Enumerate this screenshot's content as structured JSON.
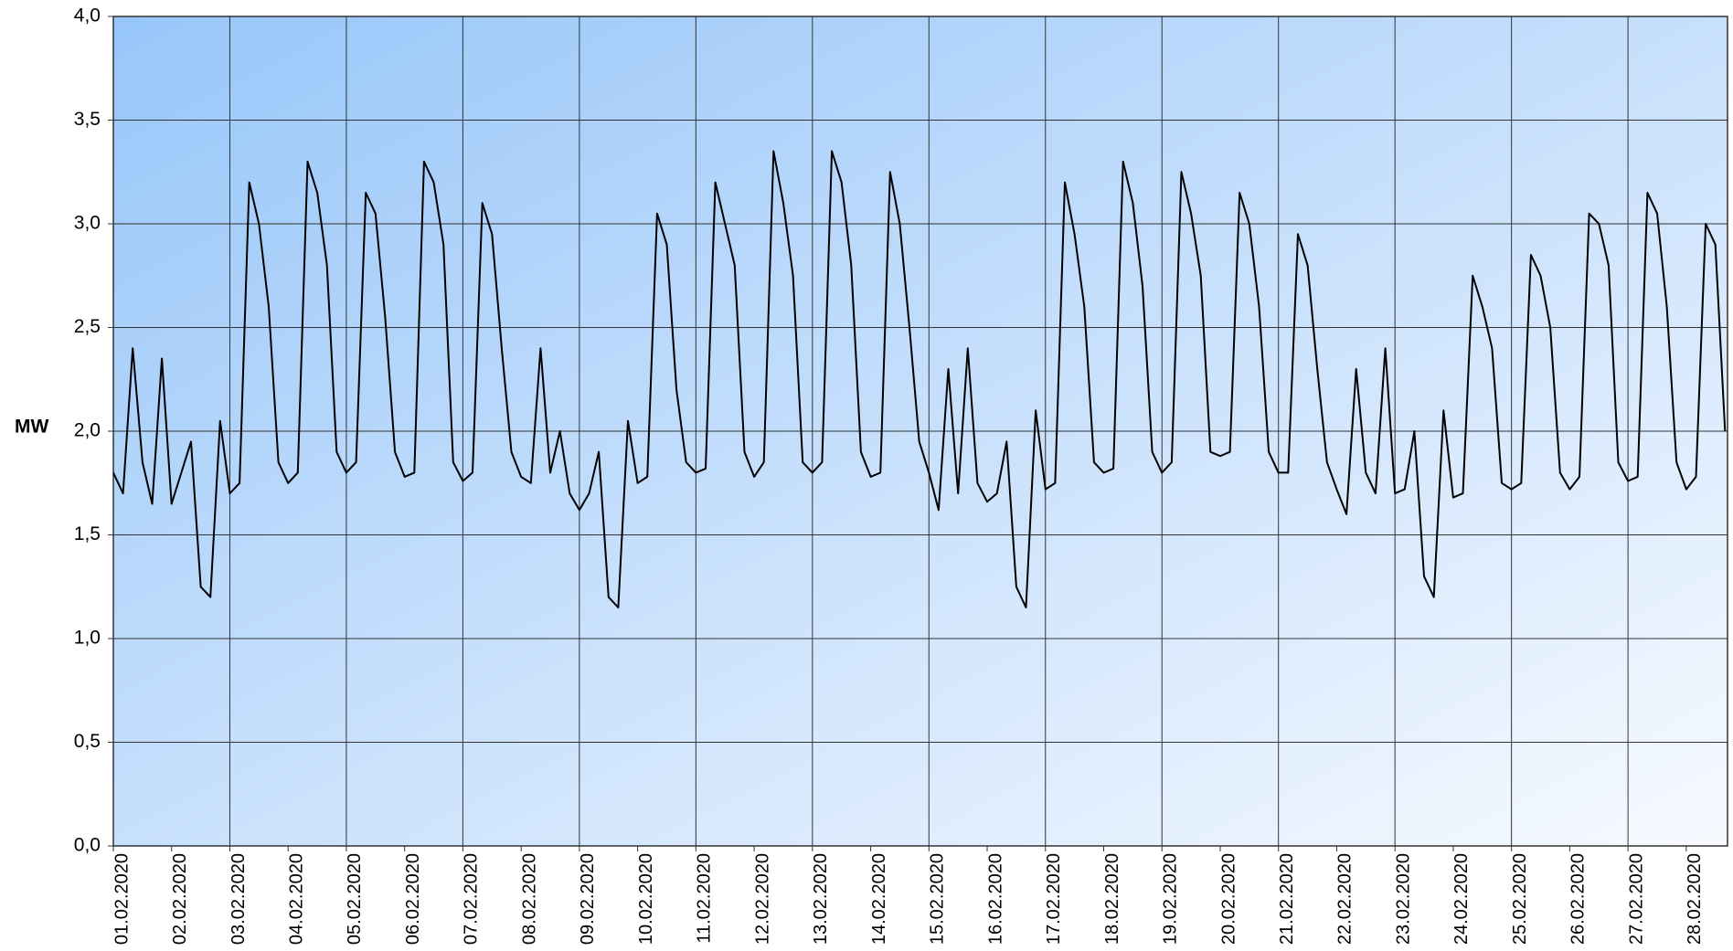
{
  "chart_data": {
    "type": "line",
    "ylabel": "MW",
    "x": [
      0,
      4,
      8,
      12,
      16,
      20,
      24,
      28,
      32,
      36,
      40,
      44,
      48,
      52,
      56,
      60,
      64,
      68,
      72,
      76,
      80,
      84,
      88,
      92,
      96,
      100,
      104,
      108,
      112,
      116,
      120,
      124,
      128,
      132,
      136,
      140,
      144,
      148,
      152,
      156,
      160,
      164,
      168,
      172,
      176,
      180,
      184,
      188,
      192,
      196,
      200,
      204,
      208,
      212,
      216,
      220,
      224,
      228,
      232,
      236,
      240,
      244,
      248,
      252,
      256,
      260,
      264,
      268,
      272,
      276,
      280,
      284,
      288,
      292,
      296,
      300,
      304,
      308,
      312,
      316,
      320,
      324,
      328,
      332,
      336,
      340,
      344,
      348,
      352,
      356,
      360,
      364,
      368,
      372,
      376,
      380,
      384,
      388,
      392,
      396,
      400,
      404,
      408,
      412,
      416,
      420,
      424,
      428,
      432,
      436,
      440,
      444,
      448,
      452,
      456,
      460,
      464,
      468,
      472,
      476,
      480,
      484,
      488,
      492,
      496,
      500,
      504,
      508,
      512,
      516,
      520,
      524,
      528,
      532,
      536,
      540,
      544,
      548,
      552,
      556,
      560,
      564,
      568,
      572,
      576,
      580,
      584,
      588,
      592,
      596,
      600,
      604,
      608,
      612,
      616,
      620,
      624,
      628,
      632,
      636,
      640,
      644,
      648,
      652,
      656,
      660,
      664
    ],
    "series": [
      {
        "name": "MW",
        "color": "#000000",
        "values": [
          1.8,
          1.7,
          2.4,
          1.85,
          1.65,
          2.35,
          1.65,
          1.8,
          1.95,
          1.25,
          1.2,
          2.05,
          1.7,
          1.75,
          3.2,
          3.0,
          2.6,
          1.85,
          1.75,
          1.8,
          3.3,
          3.15,
          2.8,
          1.9,
          1.8,
          1.85,
          3.15,
          3.05,
          2.55,
          1.9,
          1.78,
          1.8,
          3.3,
          3.2,
          2.9,
          1.85,
          1.76,
          1.8,
          3.1,
          2.95,
          2.4,
          1.9,
          1.78,
          1.75,
          2.4,
          1.8,
          2.0,
          1.7,
          1.62,
          1.7,
          1.9,
          1.2,
          1.15,
          2.05,
          1.75,
          1.78,
          3.05,
          2.9,
          2.2,
          1.85,
          1.8,
          1.82,
          3.2,
          3.0,
          2.8,
          1.9,
          1.78,
          1.85,
          3.35,
          3.1,
          2.75,
          1.85,
          1.8,
          1.85,
          3.35,
          3.2,
          2.8,
          1.9,
          1.78,
          1.8,
          3.25,
          3.0,
          2.5,
          1.95,
          1.8,
          1.62,
          2.3,
          1.7,
          2.4,
          1.75,
          1.66,
          1.7,
          1.95,
          1.25,
          1.15,
          2.1,
          1.72,
          1.75,
          3.2,
          2.95,
          2.6,
          1.85,
          1.8,
          1.82,
          3.3,
          3.1,
          2.7,
          1.9,
          1.8,
          1.85,
          3.25,
          3.05,
          2.75,
          1.9,
          1.88,
          1.9,
          3.15,
          3.0,
          2.6,
          1.9,
          1.8,
          1.8,
          2.95,
          2.8,
          2.3,
          1.85,
          1.72,
          1.6,
          2.3,
          1.8,
          1.7,
          2.4,
          1.7,
          1.72,
          2.0,
          1.3,
          1.2,
          2.1,
          1.68,
          1.7,
          2.75,
          2.6,
          2.4,
          1.75,
          1.72,
          1.75,
          2.85,
          2.75,
          2.5,
          1.8,
          1.72,
          1.78,
          3.05,
          3.0,
          2.8,
          1.85,
          1.76,
          1.78,
          3.15,
          3.05,
          2.6,
          1.85,
          1.72,
          1.78,
          3.0,
          2.9,
          2.0
        ]
      }
    ],
    "xlim": [
      0,
      665
    ],
    "xticks": [
      {
        "value": 0,
        "label": "01.02.2020"
      },
      {
        "value": 24,
        "label": "02.02.2020"
      },
      {
        "value": 48,
        "label": "03.02.2020"
      },
      {
        "value": 72,
        "label": "04.02.2020"
      },
      {
        "value": 96,
        "label": "05.02.2020"
      },
      {
        "value": 120,
        "label": "06.02.2020"
      },
      {
        "value": 144,
        "label": "07.02.2020"
      },
      {
        "value": 168,
        "label": "08.02.2020"
      },
      {
        "value": 192,
        "label": "09.02.2020"
      },
      {
        "value": 216,
        "label": "10.02.2020"
      },
      {
        "value": 240,
        "label": "11.02.2020"
      },
      {
        "value": 264,
        "label": "12.02.2020"
      },
      {
        "value": 288,
        "label": "13.02.2020"
      },
      {
        "value": 312,
        "label": "14.02.2020"
      },
      {
        "value": 336,
        "label": "15.02.2020"
      },
      {
        "value": 360,
        "label": "16.02.2020"
      },
      {
        "value": 384,
        "label": "17.02.2020"
      },
      {
        "value": 408,
        "label": "18.02.2020"
      },
      {
        "value": 432,
        "label": "19.02.2020"
      },
      {
        "value": 456,
        "label": "20.02.2020"
      },
      {
        "value": 480,
        "label": "21.02.2020"
      },
      {
        "value": 504,
        "label": "22.02.2020"
      },
      {
        "value": 528,
        "label": "23.02.2020"
      },
      {
        "value": 552,
        "label": "24.02.2020"
      },
      {
        "value": 576,
        "label": "25.02.2020"
      },
      {
        "value": 600,
        "label": "26.02.2020"
      },
      {
        "value": 624,
        "label": "27.02.2020"
      },
      {
        "value": 648,
        "label": "28.02.2020"
      }
    ],
    "ylim": [
      0,
      4
    ],
    "yticks": [
      {
        "value": 0,
        "label": "0,0"
      },
      {
        "value": 0.5,
        "label": "0,5"
      },
      {
        "value": 1,
        "label": "1,0"
      },
      {
        "value": 1.5,
        "label": "1,5"
      },
      {
        "value": 2,
        "label": "2,0"
      },
      {
        "value": 2.5,
        "label": "2,5"
      },
      {
        "value": 3,
        "label": "3,0"
      },
      {
        "value": 3.5,
        "label": "3,5"
      },
      {
        "value": 4,
        "label": "4,0"
      }
    ],
    "grid": true
  }
}
